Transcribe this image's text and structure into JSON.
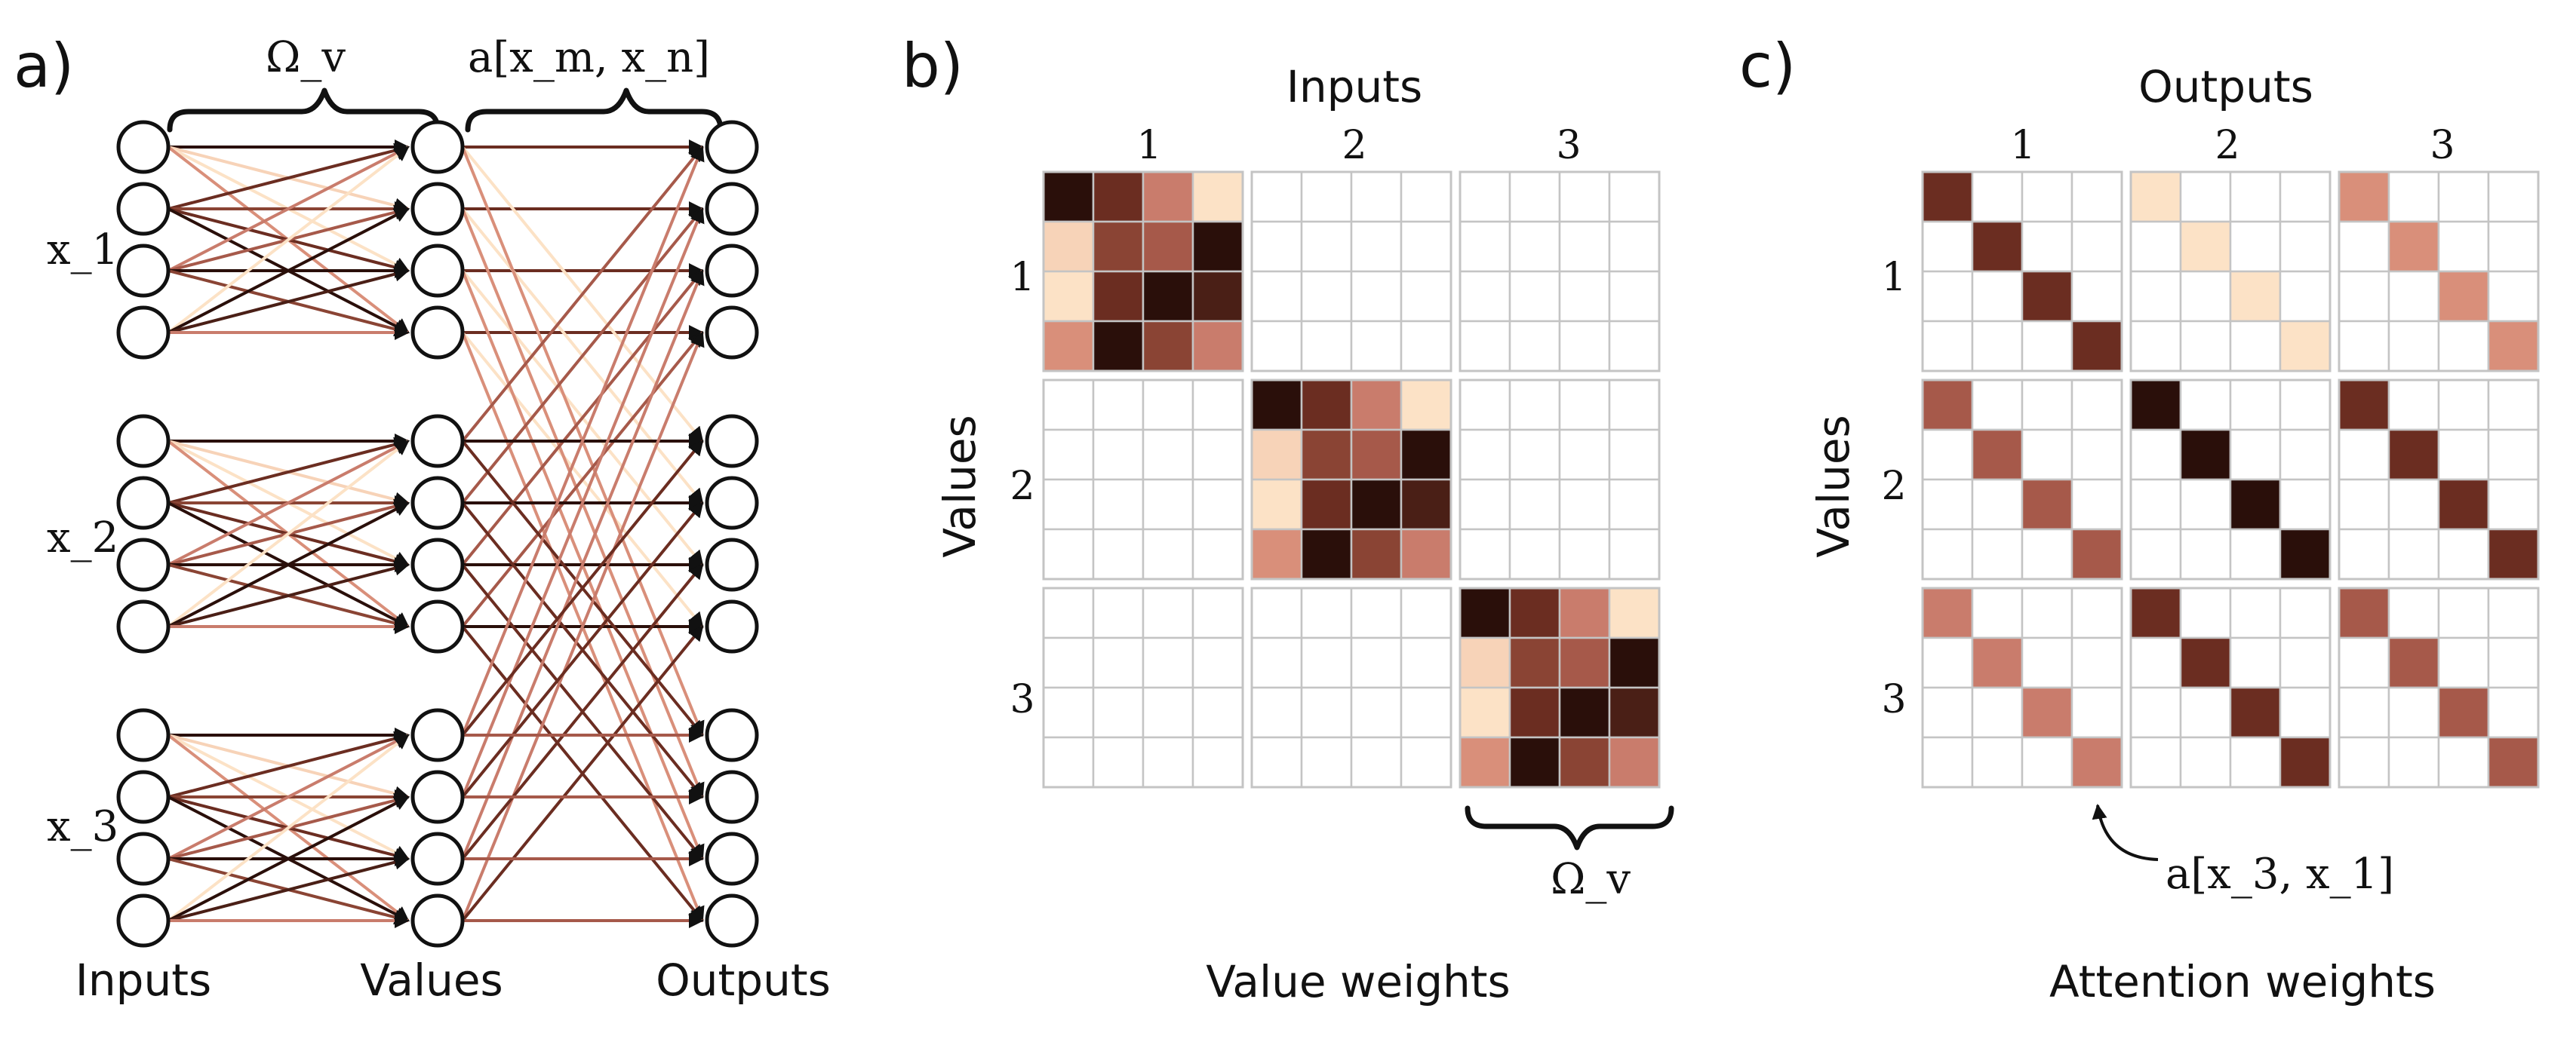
{
  "panels": {
    "a": {
      "label": "a)",
      "brace_left_label": "Ω_v",
      "brace_right_label": "a[x_m, x_n]",
      "input_group_labels": [
        "x_1",
        "x_2",
        "x_3"
      ],
      "column_labels": [
        "Inputs",
        "Values",
        "Outputs"
      ]
    },
    "b": {
      "label": "b)",
      "top_title": "Inputs",
      "col_group_labels": [
        "1",
        "2",
        "3"
      ],
      "row_group_labels": [
        "1",
        "2",
        "3"
      ],
      "row_axis_label": "Values",
      "brace_label": "Ω_v",
      "caption": "Value weights"
    },
    "c": {
      "label": "c)",
      "top_title": "Outputs",
      "col_group_labels": [
        "1",
        "2",
        "3"
      ],
      "row_group_labels": [
        "1",
        "2",
        "3"
      ],
      "row_axis_label": "Values",
      "annotation": "a[x_3, x_1]",
      "caption": "Attention weights"
    }
  },
  "colors": {
    "c0": "#2a0f0a",
    "c1": "#4a1f16",
    "c2": "#6b2d21",
    "c3": "#8a4434",
    "c4": "#a6594a",
    "c5": "#c97c6c",
    "c6": "#d98f7a",
    "c7": "#f7d3b8",
    "c8": "#fce2c6"
  },
  "value_weights_block": [
    [
      "c0",
      "c2",
      "c5",
      "c8"
    ],
    [
      "c7",
      "c3",
      "c4",
      "c0"
    ],
    [
      "c8",
      "c2",
      "c0",
      "c1"
    ],
    [
      "c6",
      "c0",
      "c3",
      "c5"
    ]
  ],
  "attention_block_colors": [
    [
      "c2",
      "c8",
      "c6"
    ],
    [
      "c4",
      "c0",
      "c2"
    ],
    [
      "c5",
      "c2",
      "c4"
    ]
  ]
}
